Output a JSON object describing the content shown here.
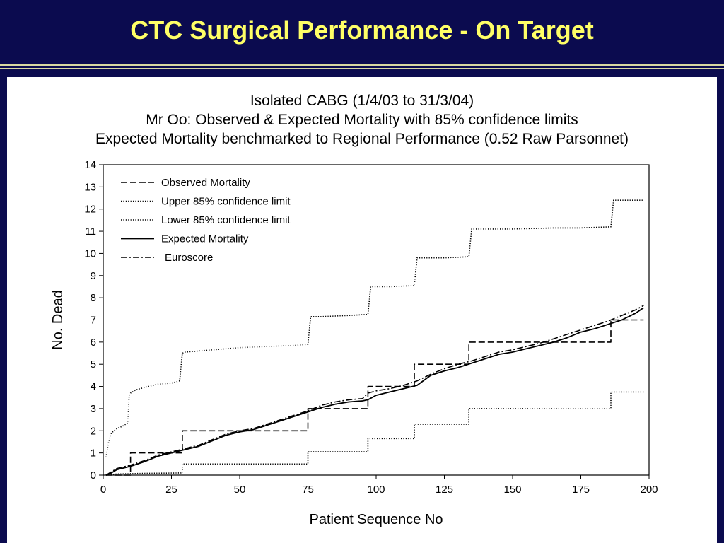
{
  "slide": {
    "title": "CTC Surgical Performance - On Target"
  },
  "chart_data": {
    "type": "line",
    "title_lines": [
      "Isolated CABG (1/4/03 to 31/3/04)",
      "Mr Oo: Observed & Expected Mortality with 85% confidence limits",
      "Expected Mortality benchmarked to Regional Performance (0.52 Raw Parsonnet)"
    ],
    "xlabel": "Patient Sequence No",
    "ylabel": "No. Dead",
    "xlim": [
      0,
      200
    ],
    "ylim": [
      0,
      14
    ],
    "xticks": [
      0,
      25,
      50,
      75,
      100,
      125,
      150,
      175,
      200
    ],
    "yticks": [
      0,
      1,
      2,
      3,
      4,
      5,
      6,
      7,
      8,
      9,
      10,
      11,
      12,
      13,
      14
    ],
    "legend_position": "top-left",
    "series": [
      {
        "name": "Observed Mortality",
        "style": "dashed",
        "step": true,
        "points": [
          [
            1,
            0
          ],
          [
            10,
            0
          ],
          [
            10,
            1
          ],
          [
            29,
            1
          ],
          [
            29,
            2
          ],
          [
            75,
            2
          ],
          [
            75,
            3
          ],
          [
            97,
            3
          ],
          [
            97,
            4
          ],
          [
            114,
            4
          ],
          [
            114,
            5
          ],
          [
            134,
            5
          ],
          [
            134,
            6
          ],
          [
            186,
            6
          ],
          [
            186,
            7
          ],
          [
            198,
            7
          ]
        ]
      },
      {
        "name": "Upper 85% confidence limit",
        "style": "dotted",
        "step": false,
        "points": [
          [
            1,
            0.8
          ],
          [
            2,
            1.5
          ],
          [
            3,
            1.9
          ],
          [
            5,
            2.1
          ],
          [
            7,
            2.2
          ],
          [
            9,
            2.35
          ],
          [
            9.5,
            3.6
          ],
          [
            10,
            3.7
          ],
          [
            12,
            3.85
          ],
          [
            15,
            3.95
          ],
          [
            20,
            4.1
          ],
          [
            25,
            4.15
          ],
          [
            28,
            4.25
          ],
          [
            29,
            5.5
          ],
          [
            30,
            5.55
          ],
          [
            40,
            5.65
          ],
          [
            50,
            5.75
          ],
          [
            60,
            5.8
          ],
          [
            70,
            5.85
          ],
          [
            75,
            5.9
          ],
          [
            76,
            7.15
          ],
          [
            80,
            7.15
          ],
          [
            90,
            7.2
          ],
          [
            97,
            7.25
          ],
          [
            98,
            8.5
          ],
          [
            105,
            8.5
          ],
          [
            114,
            8.55
          ],
          [
            115,
            9.8
          ],
          [
            125,
            9.8
          ],
          [
            134,
            9.85
          ],
          [
            135,
            11.1
          ],
          [
            150,
            11.1
          ],
          [
            165,
            11.15
          ],
          [
            175,
            11.15
          ],
          [
            186,
            11.2
          ],
          [
            187,
            12.4
          ],
          [
            198,
            12.4
          ]
        ]
      },
      {
        "name": "Lower 85% confidence limit",
        "style": "dotted",
        "step": true,
        "points": [
          [
            1,
            0
          ],
          [
            5,
            0.05
          ],
          [
            15,
            0.08
          ],
          [
            29,
            0.1
          ],
          [
            29,
            0.5
          ],
          [
            75,
            0.5
          ],
          [
            75,
            1.05
          ],
          [
            97,
            1.05
          ],
          [
            97,
            1.65
          ],
          [
            114,
            1.65
          ],
          [
            114,
            2.3
          ],
          [
            134,
            2.3
          ],
          [
            134,
            3.0
          ],
          [
            186,
            3.0
          ],
          [
            186,
            3.75
          ],
          [
            198,
            3.75
          ]
        ]
      },
      {
        "name": "Expected Mortality",
        "style": "solid",
        "step": false,
        "points": [
          [
            1,
            0
          ],
          [
            3,
            0.1
          ],
          [
            5,
            0.25
          ],
          [
            10,
            0.4
          ],
          [
            15,
            0.6
          ],
          [
            20,
            0.85
          ],
          [
            25,
            1.0
          ],
          [
            30,
            1.15
          ],
          [
            35,
            1.3
          ],
          [
            40,
            1.55
          ],
          [
            45,
            1.8
          ],
          [
            50,
            1.95
          ],
          [
            55,
            2.05
          ],
          [
            60,
            2.25
          ],
          [
            65,
            2.45
          ],
          [
            70,
            2.65
          ],
          [
            75,
            2.85
          ],
          [
            80,
            3.05
          ],
          [
            85,
            3.2
          ],
          [
            90,
            3.3
          ],
          [
            95,
            3.35
          ],
          [
            97,
            3.4
          ],
          [
            100,
            3.6
          ],
          [
            105,
            3.75
          ],
          [
            110,
            3.9
          ],
          [
            115,
            4.05
          ],
          [
            120,
            4.5
          ],
          [
            125,
            4.7
          ],
          [
            130,
            4.85
          ],
          [
            135,
            5.05
          ],
          [
            140,
            5.25
          ],
          [
            145,
            5.45
          ],
          [
            150,
            5.55
          ],
          [
            155,
            5.7
          ],
          [
            160,
            5.85
          ],
          [
            165,
            6.0
          ],
          [
            170,
            6.2
          ],
          [
            175,
            6.45
          ],
          [
            180,
            6.6
          ],
          [
            185,
            6.8
          ],
          [
            190,
            7.0
          ],
          [
            195,
            7.3
          ],
          [
            198,
            7.55
          ]
        ]
      },
      {
        "name": "Euroscore",
        "style": "dashdot",
        "step": false,
        "points": [
          [
            1,
            0
          ],
          [
            3,
            0.15
          ],
          [
            5,
            0.3
          ],
          [
            10,
            0.45
          ],
          [
            15,
            0.65
          ],
          [
            20,
            0.9
          ],
          [
            25,
            1.05
          ],
          [
            30,
            1.2
          ],
          [
            35,
            1.35
          ],
          [
            40,
            1.6
          ],
          [
            45,
            1.85
          ],
          [
            50,
            2.0
          ],
          [
            55,
            2.1
          ],
          [
            60,
            2.3
          ],
          [
            65,
            2.5
          ],
          [
            70,
            2.7
          ],
          [
            75,
            2.9
          ],
          [
            80,
            3.15
          ],
          [
            85,
            3.3
          ],
          [
            90,
            3.4
          ],
          [
            95,
            3.45
          ],
          [
            97,
            3.7
          ],
          [
            100,
            3.8
          ],
          [
            105,
            3.9
          ],
          [
            110,
            4.05
          ],
          [
            115,
            4.25
          ],
          [
            120,
            4.55
          ],
          [
            125,
            4.8
          ],
          [
            130,
            5.0
          ],
          [
            135,
            5.15
          ],
          [
            140,
            5.35
          ],
          [
            145,
            5.55
          ],
          [
            150,
            5.65
          ],
          [
            155,
            5.8
          ],
          [
            160,
            5.95
          ],
          [
            165,
            6.15
          ],
          [
            170,
            6.35
          ],
          [
            175,
            6.55
          ],
          [
            180,
            6.75
          ],
          [
            185,
            6.95
          ],
          [
            190,
            7.2
          ],
          [
            195,
            7.45
          ],
          [
            198,
            7.65
          ]
        ]
      }
    ]
  }
}
